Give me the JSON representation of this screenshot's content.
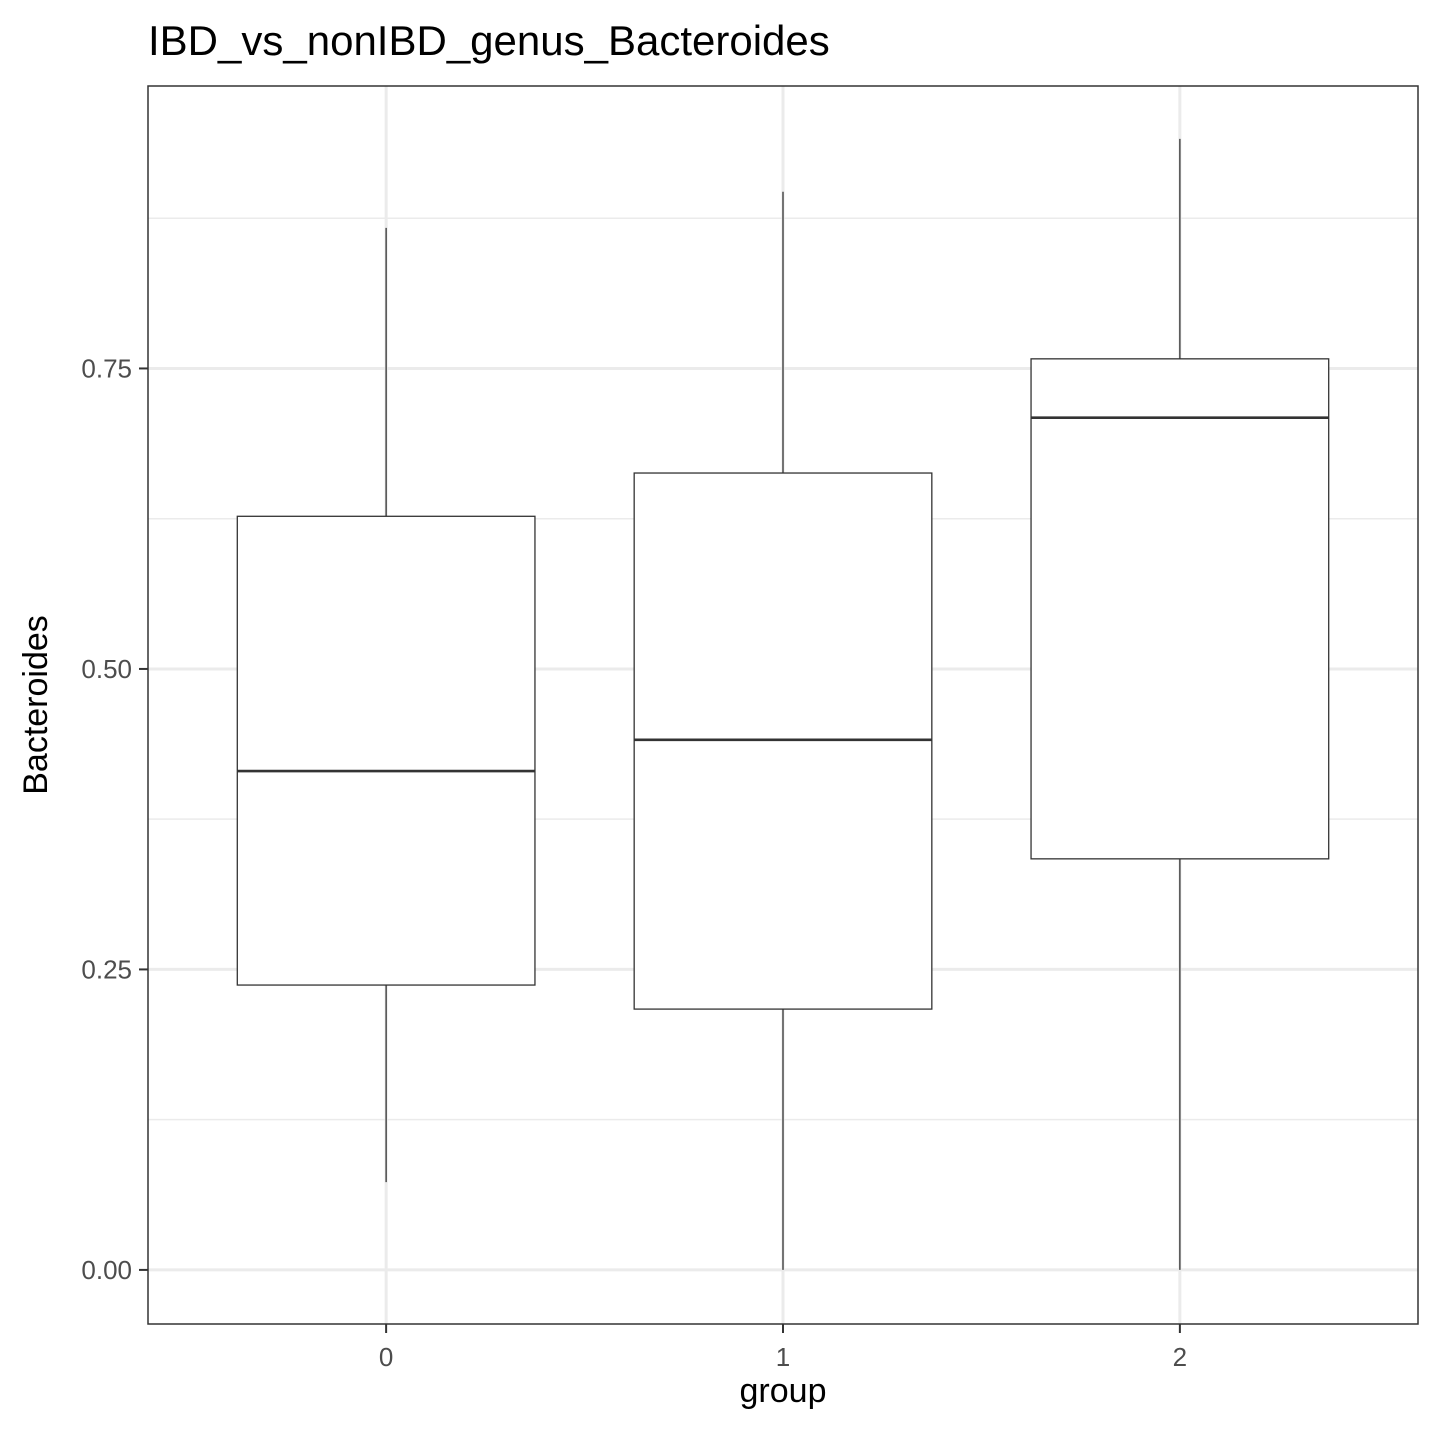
{
  "chart_data": {
    "type": "boxplot",
    "title": "IBD_vs_nonIBD_genus_Bacteroides",
    "xlabel": "group",
    "ylabel": "Bacteroides",
    "categories": [
      "0",
      "1",
      "2"
    ],
    "y_ticks": [
      "0.00",
      "0.25",
      "0.50",
      "0.75"
    ],
    "ylim": [
      -0.045,
      0.985
    ],
    "grid": true,
    "boxes": [
      {
        "category": "0",
        "whisker_low": 0.073,
        "q1": 0.237,
        "median": 0.415,
        "q3": 0.627,
        "whisker_high": 0.867
      },
      {
        "category": "1",
        "whisker_low": 0.0,
        "q1": 0.217,
        "median": 0.441,
        "q3": 0.663,
        "whisker_high": 0.897
      },
      {
        "category": "2",
        "whisker_low": 0.0,
        "q1": 0.342,
        "median": 0.709,
        "q3": 0.758,
        "whisker_high": 0.941
      }
    ],
    "colors": {
      "panel_border": "#333333",
      "grid_major": "#ebebeb",
      "grid_minor": "#ebebeb",
      "box_line": "#333333",
      "tick_text": "#4d4d4d"
    }
  }
}
